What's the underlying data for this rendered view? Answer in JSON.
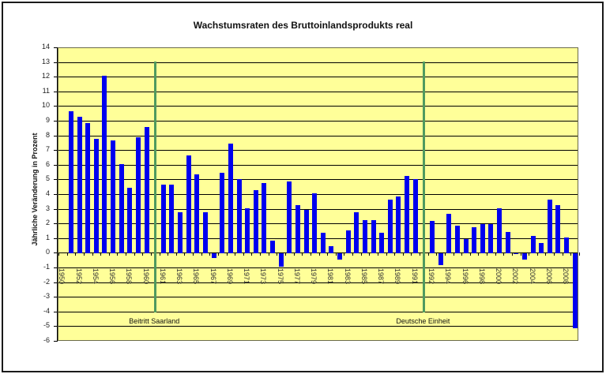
{
  "chart_data": {
    "type": "bar",
    "title": "Wachstumsraten des Bruttoinlandsprodukts real",
    "xlabel": "",
    "ylabel": "Jährliche Veränderung in Prozent",
    "ylim": [
      -6,
      14
    ],
    "yticks": [
      14,
      13,
      12,
      11,
      10,
      9,
      8,
      7,
      6,
      5,
      4,
      3,
      2,
      1,
      0,
      -1,
      -2,
      -3,
      -4,
      -5,
      -6
    ],
    "grid": true,
    "legend": null,
    "categories": [
      "1950",
      "1951",
      "1952",
      "1953",
      "1954",
      "1955",
      "1956",
      "1957",
      "1958",
      "1959",
      "1960",
      "",
      "1961",
      "1962",
      "1963",
      "1964",
      "1965",
      "1966",
      "1967",
      "1968",
      "1969",
      "1970",
      "1971",
      "1972",
      "1973",
      "1974",
      "1975",
      "1976",
      "1977",
      "1978",
      "1979",
      "1980",
      "1981",
      "1982",
      "1983",
      "1984",
      "1985",
      "1986",
      "1987",
      "1988",
      "1989",
      "1990",
      "1991",
      "",
      "1992",
      "1993",
      "1994",
      "1995",
      "1996",
      "1997",
      "1998",
      "1999",
      "2000",
      "2001",
      "2002",
      "2003",
      "2004",
      "2005",
      "2006",
      "2007",
      "2008",
      "2009"
    ],
    "values": [
      null,
      9.7,
      9.3,
      8.9,
      7.8,
      12.1,
      7.7,
      6.1,
      4.5,
      7.9,
      8.6,
      null,
      4.7,
      4.7,
      2.8,
      6.7,
      5.4,
      2.8,
      -0.3,
      5.5,
      7.5,
      5.1,
      3.1,
      4.3,
      4.8,
      0.9,
      -0.9,
      4.9,
      3.3,
      3.0,
      4.1,
      1.4,
      0.5,
      -0.4,
      1.6,
      2.8,
      2.3,
      2.3,
      1.4,
      3.7,
      3.9,
      5.3,
      5.1,
      null,
      2.2,
      -0.8,
      2.7,
      1.9,
      1.0,
      1.8,
      2.0,
      2.0,
      3.1,
      1.5,
      0.0,
      -0.4,
      1.2,
      0.7,
      3.7,
      3.3,
      1.1,
      -5.1
    ],
    "xtick_labels": [
      "1950",
      "1952",
      "1954",
      "1956",
      "1958",
      "1960",
      "1961",
      "1963",
      "1965",
      "1967",
      "1969",
      "1971",
      "1973",
      "1975",
      "1977",
      "1979",
      "1981",
      "1983",
      "1985",
      "1987",
      "1989",
      "1991",
      "1992",
      "1994",
      "1996",
      "1998",
      "2000",
      "2002",
      "2004",
      "2006",
      "2008"
    ],
    "annotations": [
      {
        "label": "Beitritt Saarland",
        "slot": 11,
        "line_top": 13.1,
        "line_bottom": -4
      },
      {
        "label": "Deutsche Einheit",
        "slot": 43,
        "line_top": 13.1,
        "line_bottom": -4
      }
    ],
    "colors": {
      "bar": "#0000ee",
      "plot_bg": "#ffff99",
      "marker_line": "#4f9a5f"
    }
  }
}
